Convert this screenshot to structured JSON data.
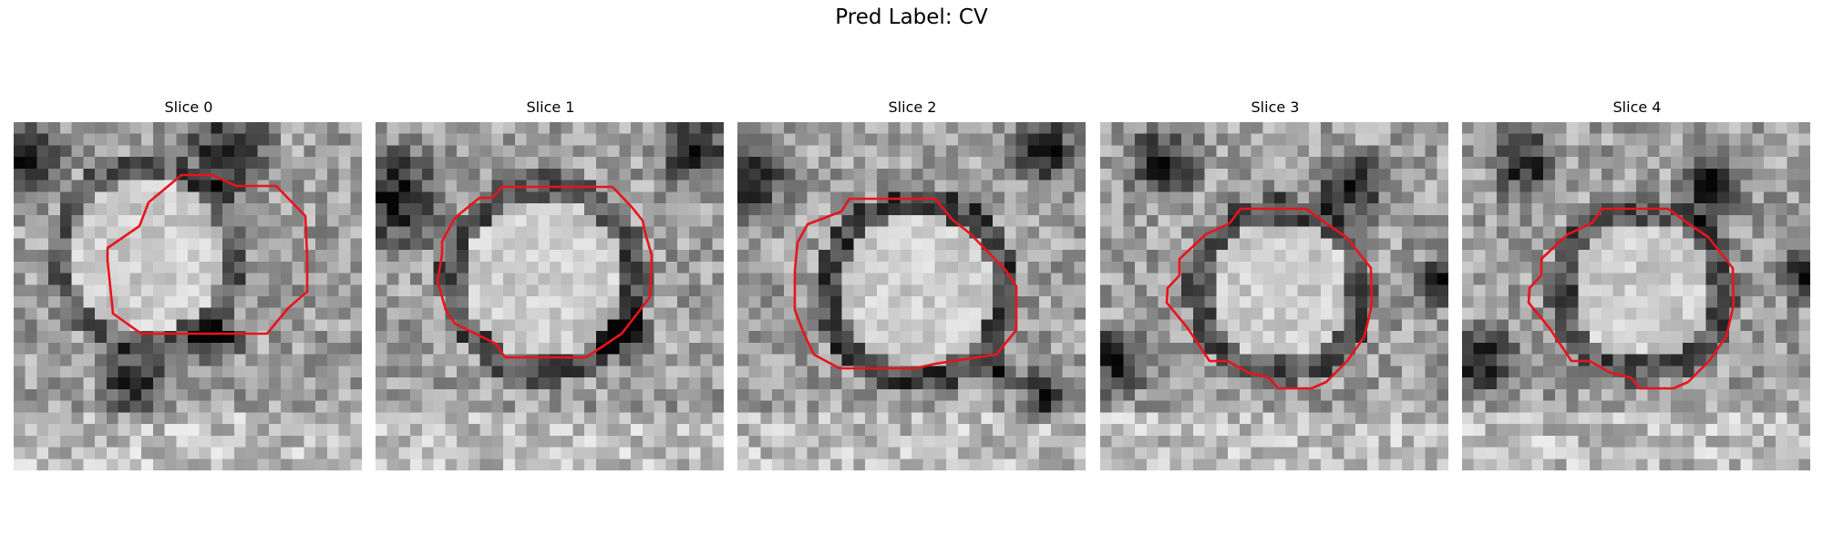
{
  "figure": {
    "suptitle": "Pred Label: CV",
    "contour_color": "#e8141c"
  },
  "panels": [
    {
      "title": "Slice 0"
    },
    {
      "title": "Slice 1"
    },
    {
      "title": "Slice 2"
    },
    {
      "title": "Slice 3"
    },
    {
      "title": "Slice 4"
    }
  ]
}
